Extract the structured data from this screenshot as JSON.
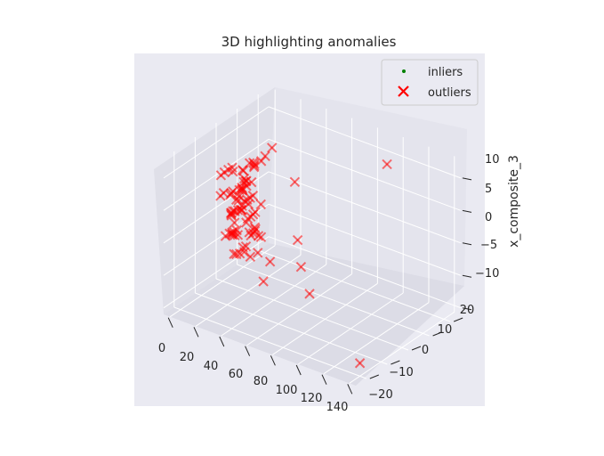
{
  "chart_data": {
    "type": "scatter",
    "title": "3D highlighting anomalies",
    "xlabel": "",
    "ylabel": "",
    "zlabel": "x_composite_3",
    "xlim": [
      -5,
      145
    ],
    "ylim": [
      -25,
      25
    ],
    "zlim": [
      -11,
      13
    ],
    "x_ticks": [
      "0",
      "20",
      "40",
      "60",
      "80",
      "100",
      "120",
      "140"
    ],
    "y_ticks": [
      "20",
      "10",
      "0",
      "−10",
      "−20"
    ],
    "z_ticks": [
      "10",
      "5",
      "0",
      "−5",
      "−10"
    ],
    "legend": {
      "placement": "top-right",
      "entries": [
        {
          "label": "inliers",
          "marker": "dot",
          "color": "#008000"
        },
        {
          "label": "outliers",
          "marker": "x",
          "color": "#ff0000"
        }
      ]
    },
    "grid": true,
    "background": "#eaeaf2",
    "series": [
      {
        "name": "outliers",
        "marker": "x",
        "color": "#ff0000",
        "points": [
          {
            "x": 6,
            "y": 4,
            "z": 1
          },
          {
            "x": 7,
            "y": 5,
            "z": 0
          },
          {
            "x": 8,
            "y": 3,
            "z": 2
          },
          {
            "x": 5,
            "y": 6,
            "z": -1
          },
          {
            "x": 9,
            "y": 4,
            "z": 3
          },
          {
            "x": 6,
            "y": 2,
            "z": -2
          },
          {
            "x": 10,
            "y": 5,
            "z": 4
          },
          {
            "x": 7,
            "y": 7,
            "z": -3
          },
          {
            "x": 12,
            "y": 3,
            "z": 5
          },
          {
            "x": 11,
            "y": 6,
            "z": -4
          },
          {
            "x": 8,
            "y": 8,
            "z": 6
          },
          {
            "x": 15,
            "y": 2,
            "z": -5
          },
          {
            "x": 18,
            "y": 4,
            "z": 7
          },
          {
            "x": 14,
            "y": -2,
            "z": 3
          },
          {
            "x": 20,
            "y": 1,
            "z": -6
          },
          {
            "x": 22,
            "y": 5,
            "z": 8
          },
          {
            "x": 16,
            "y": 7,
            "z": -7
          },
          {
            "x": 25,
            "y": 3,
            "z": 2
          },
          {
            "x": 28,
            "y": 0,
            "z": -2
          },
          {
            "x": 30,
            "y": 2,
            "z": 10
          },
          {
            "x": 32,
            "y": 4,
            "z": 11
          },
          {
            "x": 35,
            "y": -3,
            "z": -1
          },
          {
            "x": 24,
            "y": 8,
            "z": -8
          },
          {
            "x": 45,
            "y": -8,
            "z": -6
          },
          {
            "x": 40,
            "y": 10,
            "z": 5
          },
          {
            "x": 58,
            "y": 2,
            "z": -5
          },
          {
            "x": 63,
            "y": 3,
            "z": -9
          },
          {
            "x": 75,
            "y": -10,
            "z": 3
          },
          {
            "x": 112,
            "y": 10,
            "z": 13
          },
          {
            "x": 140,
            "y": -20,
            "z": -9
          }
        ]
      }
    ]
  }
}
